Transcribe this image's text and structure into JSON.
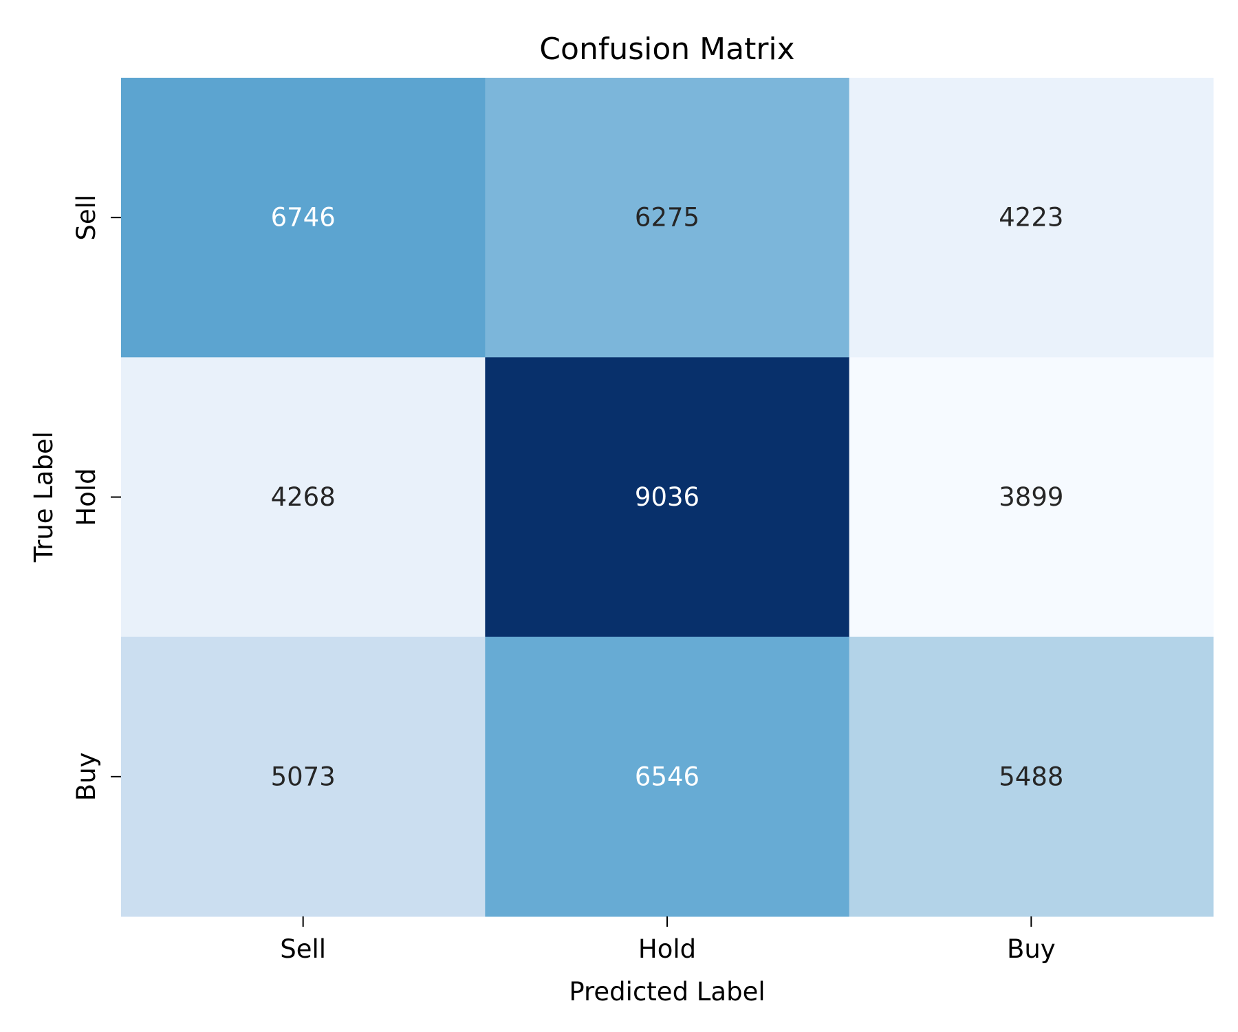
{
  "chart_data": {
    "type": "heatmap",
    "title": "Confusion Matrix",
    "xlabel": "Predicted Label",
    "ylabel": "True Label",
    "x_categories": [
      "Sell",
      "Hold",
      "Buy"
    ],
    "y_categories": [
      "Sell",
      "Hold",
      "Buy"
    ],
    "matrix": [
      [
        6746,
        6275,
        4223
      ],
      [
        4268,
        9036,
        3899
      ],
      [
        5073,
        6546,
        5488
      ]
    ],
    "cell_colors": [
      [
        "#5ca4d0",
        "#7cb6da",
        "#eaf2fb"
      ],
      [
        "#e9f1fa",
        "#08306b",
        "#f6faff"
      ],
      [
        "#cbdef0",
        "#67abd4",
        "#b3d3e8"
      ]
    ],
    "label_colors": [
      [
        "#ffffff",
        "#262626",
        "#262626"
      ],
      [
        "#262626",
        "#ffffff",
        "#262626"
      ],
      [
        "#262626",
        "#ffffff",
        "#262626"
      ]
    ],
    "colormap": "Blues",
    "colorbar": false
  }
}
